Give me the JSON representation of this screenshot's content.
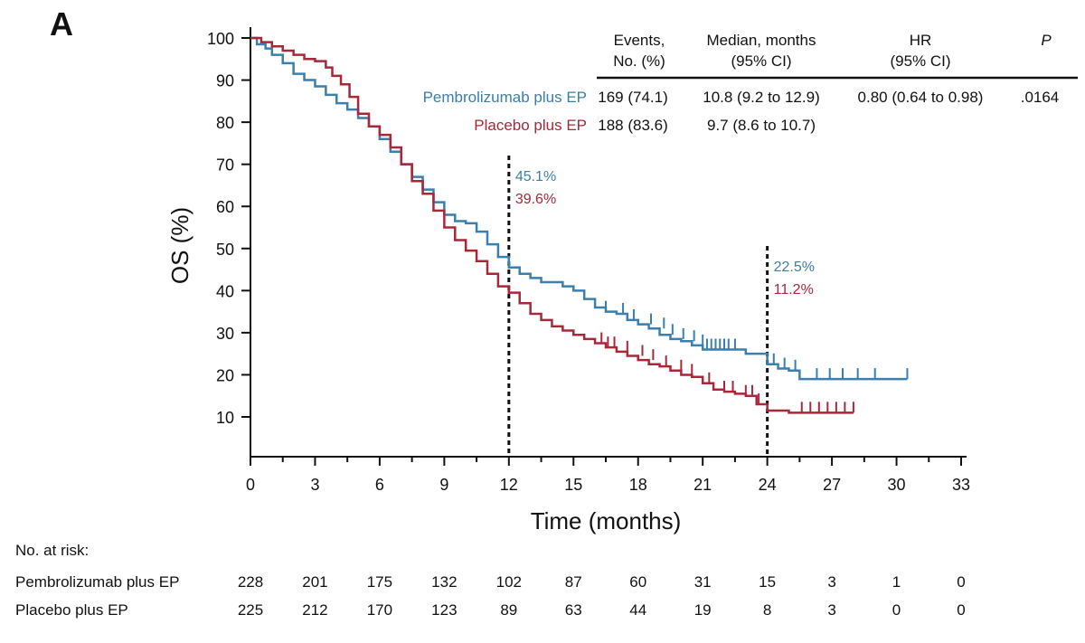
{
  "panel_label": "A",
  "colors": {
    "series1": "#3a7fad",
    "series2": "#a8283a",
    "axis": "#111111"
  },
  "chart_data": {
    "type": "line",
    "xlabel": "Time (months)",
    "ylabel": "OS (%)",
    "xlim": [
      0,
      33
    ],
    "ylim": [
      0,
      100
    ],
    "xticks": [
      0,
      3,
      6,
      9,
      12,
      15,
      18,
      21,
      24,
      27,
      30,
      33
    ],
    "yticks": [
      10,
      20,
      30,
      40,
      50,
      60,
      70,
      80,
      90,
      100
    ],
    "grid": false,
    "series": [
      {
        "name": "Pembrolizumab plus EP",
        "color": "#3a7fad",
        "x": [
          0,
          0.3,
          0.7,
          1.0,
          1.5,
          2.0,
          2.5,
          3.0,
          3.5,
          4.0,
          4.5,
          5.0,
          5.5,
          6.0,
          6.5,
          7.0,
          7.5,
          8.0,
          8.5,
          9.0,
          9.5,
          10.0,
          10.5,
          11.0,
          11.5,
          12.0,
          12.5,
          13.0,
          13.5,
          14.0,
          14.5,
          15.0,
          15.5,
          16.0,
          16.5,
          17.0,
          17.5,
          18.0,
          18.5,
          19.0,
          19.5,
          20.0,
          20.5,
          21.0,
          21.5,
          22.0,
          22.5,
          23.0,
          23.5,
          24.0,
          24.5,
          25.0,
          25.5,
          26.0,
          27.0,
          28.0,
          29.0,
          30.0,
          30.5
        ],
        "y": [
          100,
          98.5,
          97.5,
          96,
          94,
          91.5,
          90,
          88.5,
          86.5,
          84.5,
          83,
          81,
          79,
          76,
          73,
          70,
          67,
          64,
          61,
          58,
          56.5,
          56,
          54,
          51,
          48,
          45.5,
          44,
          43,
          42,
          42,
          41,
          40,
          38,
          36,
          35,
          34.5,
          33,
          32,
          31,
          29.5,
          28.5,
          28,
          27,
          26,
          26,
          26,
          26,
          25,
          25,
          22.5,
          21.5,
          21,
          19,
          19,
          19,
          19,
          19,
          19,
          19
        ],
        "censor_x": [
          16.5,
          17.3,
          17.8,
          18.6,
          19.2,
          19.6,
          20.1,
          20.6,
          21.0,
          21.2,
          21.4,
          21.6,
          21.8,
          22.0,
          22.2,
          22.5,
          24.3,
          24.8,
          25.3,
          26.3,
          26.9,
          27.5,
          28.2,
          29.0,
          30.5
        ],
        "censor_y": [
          35,
          34.5,
          33,
          32,
          31,
          29.5,
          28.5,
          28,
          27,
          26,
          26,
          26,
          26,
          26,
          26,
          26,
          22.5,
          21.5,
          21,
          19,
          19,
          19,
          19,
          19,
          19
        ]
      },
      {
        "name": "Placebo plus EP",
        "color": "#a8283a",
        "x": [
          0,
          0.5,
          1.0,
          1.5,
          2.0,
          2.5,
          3.0,
          3.5,
          3.8,
          4.2,
          4.6,
          5.0,
          5.5,
          6.0,
          6.5,
          7.0,
          7.5,
          8.0,
          8.5,
          9.0,
          9.5,
          10.0,
          10.5,
          11.0,
          11.5,
          12.0,
          12.5,
          13.0,
          13.5,
          14.0,
          14.5,
          15.0,
          15.5,
          16.0,
          16.5,
          17.0,
          17.5,
          18.0,
          18.5,
          19.0,
          19.5,
          20.0,
          20.5,
          21.0,
          21.5,
          22.0,
          22.5,
          23.0,
          23.5,
          24.0,
          25.0,
          26.0,
          27.0,
          28.0
        ],
        "y": [
          100,
          99,
          98,
          97,
          96,
          95,
          94.5,
          93,
          91,
          89,
          86,
          82,
          79,
          77,
          74,
          70,
          66,
          63,
          59,
          55,
          52,
          49.5,
          47,
          44,
          41,
          39.5,
          37,
          34.5,
          33,
          31.5,
          30.5,
          29.5,
          28.5,
          27.5,
          26.5,
          25.5,
          24.5,
          23.5,
          22.5,
          22,
          21,
          20,
          19.5,
          18,
          16.5,
          16,
          15.5,
          15,
          13,
          11.5,
          11,
          11,
          11,
          11
        ],
        "censor_x": [
          16.3,
          16.6,
          16.9,
          17.5,
          18.2,
          18.7,
          19.3,
          20.0,
          20.5,
          21.3,
          22.0,
          22.4,
          23.0,
          23.3,
          23.6,
          25.6,
          26.0,
          26.4,
          26.8,
          27.2,
          27.6,
          28.0
        ],
        "censor_y": [
          27.5,
          26.5,
          26.5,
          25.5,
          24.5,
          23.5,
          22,
          21,
          20,
          18,
          16,
          16,
          15,
          15,
          13,
          11,
          11,
          11,
          11,
          11,
          11,
          11
        ]
      }
    ],
    "reference_lines": [
      {
        "x": 12,
        "labels": [
          "45.1%",
          "39.6%"
        ]
      },
      {
        "x": 24,
        "labels": [
          "22.5%",
          "11.2%"
        ]
      }
    ]
  },
  "stats_table": {
    "headers": [
      {
        "line1": "Events,",
        "line2": "No. (%)"
      },
      {
        "line1": "Median, months",
        "line2": "(95% CI)"
      },
      {
        "line1": "HR",
        "line2": "(95% CI)"
      },
      {
        "line1": "P",
        "line2": ""
      }
    ],
    "rows": [
      {
        "label": "Pembrolizumab plus EP",
        "events": "169 (74.1)",
        "median": "10.8 (9.2 to 12.9)",
        "hr": "0.80 (0.64 to 0.98)",
        "p": ".0164"
      },
      {
        "label": "Placebo plus EP",
        "events": "188 (83.6)",
        "median": "9.7 (8.6 to 10.7)",
        "hr": "",
        "p": ""
      }
    ]
  },
  "risk_table": {
    "title": "No. at risk:",
    "rows": [
      {
        "label": "Pembrolizumab plus EP",
        "values": [
          "228",
          "201",
          "175",
          "132",
          "102",
          "87",
          "60",
          "31",
          "15",
          "3",
          "1",
          "0"
        ]
      },
      {
        "label": "Placebo plus EP",
        "values": [
          "225",
          "212",
          "170",
          "123",
          "89",
          "63",
          "44",
          "19",
          "8",
          "3",
          "0",
          "0"
        ]
      }
    ]
  }
}
